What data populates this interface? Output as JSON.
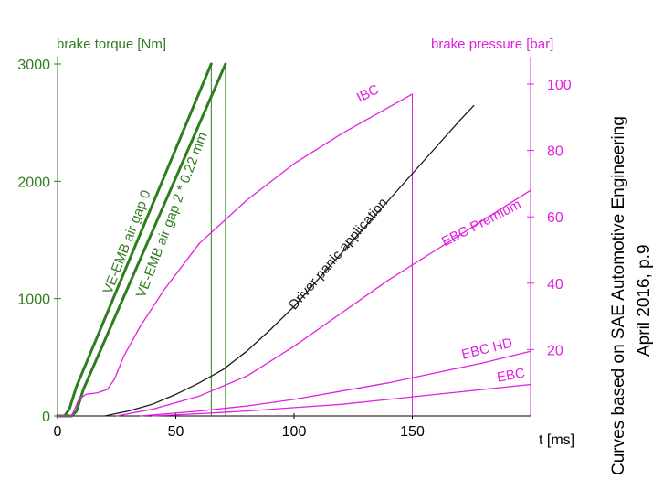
{
  "chart_data": {
    "type": "line",
    "xlabel": "t [ms]",
    "xlim": [
      0,
      200
    ],
    "x_ticks": [
      0,
      50,
      100,
      150
    ],
    "left_axis": {
      "label": "brake torque [Nm]",
      "color": "#2e7d1e",
      "ylim": [
        0,
        3000
      ],
      "ticks": [
        0,
        1000,
        2000,
        3000
      ]
    },
    "right_axis": {
      "label": "brake pressure [bar]",
      "color": "#e020e0",
      "ylim": [
        0,
        104
      ],
      "ticks": [
        20,
        40,
        60,
        80,
        100
      ]
    },
    "series": [
      {
        "name": "VE-EMB  air gap 0",
        "axis": "left",
        "color": "#2e7d1e",
        "width": 3,
        "points": [
          [
            0,
            0
          ],
          [
            3,
            0
          ],
          [
            5,
            60
          ],
          [
            8,
            250
          ],
          [
            65,
            3000
          ]
        ],
        "drop": {
          "x": 65,
          "from": 3000,
          "to": 0,
          "color": "#2e7d1e",
          "width": 1
        }
      },
      {
        "name": "VE-EMB  air gap 2 * 0.22 mm",
        "axis": "left",
        "color": "#2e7d1e",
        "width": 3,
        "points": [
          [
            0,
            0
          ],
          [
            6,
            0
          ],
          [
            8,
            40
          ],
          [
            11,
            230
          ],
          [
            71,
            3000
          ]
        ],
        "drop": {
          "x": 71,
          "from": 3000,
          "to": 0,
          "color": "#2e7d1e",
          "width": 1
        }
      },
      {
        "name": "IBC",
        "axis": "right",
        "color": "#e020e0",
        "width": 1.3,
        "points": [
          [
            0,
            0
          ],
          [
            6,
            0
          ],
          [
            9,
            5
          ],
          [
            12,
            6.5
          ],
          [
            17,
            7
          ],
          [
            21,
            8
          ],
          [
            24,
            11
          ],
          [
            28,
            18
          ],
          [
            35,
            27
          ],
          [
            45,
            38
          ],
          [
            60,
            52
          ],
          [
            80,
            65
          ],
          [
            100,
            76
          ],
          [
            120,
            85
          ],
          [
            140,
            93
          ],
          [
            150,
            97
          ]
        ],
        "drop": {
          "x": 150,
          "from": 97,
          "to": 0,
          "color": "#e020e0",
          "width": 1
        }
      },
      {
        "name": "Driver panic application",
        "axis": "right",
        "color": "#1a1a1a",
        "width": 1.3,
        "points": [
          [
            20,
            0
          ],
          [
            30,
            1.5
          ],
          [
            40,
            3.5
          ],
          [
            50,
            6.5
          ],
          [
            60,
            10
          ],
          [
            70,
            14
          ],
          [
            80,
            19.5
          ],
          [
            90,
            26
          ],
          [
            100,
            33
          ],
          [
            110,
            41
          ],
          [
            120,
            49
          ],
          [
            130,
            57
          ],
          [
            140,
            65
          ],
          [
            150,
            73
          ],
          [
            160,
            81
          ],
          [
            170,
            89
          ],
          [
            176,
            93.5
          ]
        ]
      },
      {
        "name": "EBC Premium",
        "axis": "right",
        "color": "#e020e0",
        "width": 1.3,
        "points": [
          [
            25,
            0
          ],
          [
            40,
            2
          ],
          [
            60,
            6
          ],
          [
            80,
            12
          ],
          [
            100,
            21
          ],
          [
            120,
            31
          ],
          [
            140,
            41
          ],
          [
            160,
            50
          ],
          [
            180,
            59
          ],
          [
            200,
            68
          ]
        ]
      },
      {
        "name": "EBC HD",
        "axis": "right",
        "color": "#e020e0",
        "width": 1.3,
        "points": [
          [
            35,
            0
          ],
          [
            60,
            1.5
          ],
          [
            80,
            3
          ],
          [
            100,
            5
          ],
          [
            120,
            7.5
          ],
          [
            140,
            10
          ],
          [
            160,
            13
          ],
          [
            180,
            16
          ],
          [
            200,
            19.5
          ]
        ]
      },
      {
        "name": "EBC",
        "axis": "right",
        "color": "#e020e0",
        "width": 1.3,
        "points": [
          [
            40,
            0
          ],
          [
            60,
            0.7
          ],
          [
            80,
            1.5
          ],
          [
            100,
            2.5
          ],
          [
            120,
            3.5
          ],
          [
            140,
            5
          ],
          [
            160,
            6.5
          ],
          [
            180,
            8
          ],
          [
            200,
            9.5
          ]
        ]
      }
    ],
    "annotations": [
      {
        "text": "IBC",
        "color": "#e020e0",
        "axis": "right",
        "x": 132,
        "y": 96,
        "rotate": -27,
        "size": 15
      },
      {
        "text": "Driver panic application",
        "color": "#1a1a1a",
        "axis": "right",
        "x": 120,
        "y": 48,
        "rotate": -49,
        "size": 15
      },
      {
        "text": "EBC Premium",
        "color": "#e020e0",
        "axis": "right",
        "x": 180,
        "y": 57,
        "rotate": -27,
        "size": 15
      },
      {
        "text": "EBC HD",
        "color": "#e020e0",
        "axis": "right",
        "x": 182,
        "y": 19,
        "rotate": -14,
        "size": 15
      },
      {
        "text": "EBC",
        "color": "#e020e0",
        "axis": "right",
        "x": 192,
        "y": 11,
        "rotate": -10,
        "size": 15
      },
      {
        "text": "VE-EMB  air gap 0",
        "color": "#2e7d1e",
        "axis": "left",
        "x": 31,
        "y": 1470,
        "rotate": -69,
        "size": 15
      },
      {
        "text": "VE-EMB  air gap 2 * 0.22 mm",
        "color": "#2e7d1e",
        "axis": "left",
        "x": 50,
        "y": 1700,
        "rotate": -69,
        "size": 15
      }
    ],
    "source_note": {
      "line1": "Curves based on SAE Automotive Engineering",
      "line2": "April 2016, p.9"
    },
    "grid": false
  }
}
